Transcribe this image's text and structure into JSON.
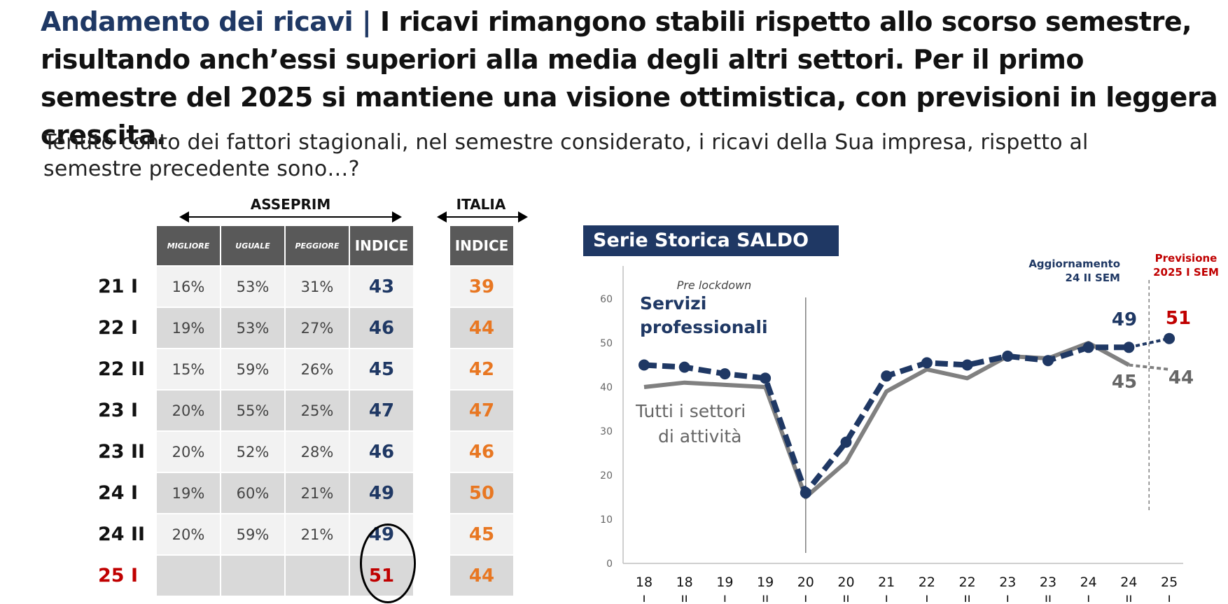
{
  "title": {
    "lead": "Andamento dei ricavi |",
    "rest": " I ricavi rimangono stabili rispetto allo scorso semestre, risultando anch’essi superiori alla media degli altri settori. Per il primo semestre del 2025 si mantiene una visione ottimistica, con previsioni in leggera crescita."
  },
  "question": "Tenuto conto dei fattori stagionali, nel semestre considerato, i ricavi della Sua impresa, rispetto al semestre precedente sono…?",
  "table": {
    "group_left": "ASSEPRIM",
    "group_right": "ITALIA",
    "headers": [
      "MIGLIORE",
      "UGUALE",
      "PEGGIORE",
      "INDICE"
    ],
    "header_italia": "INDICE",
    "rows": [
      {
        "label": "21 I",
        "migliore": "16%",
        "uguale": "53%",
        "peggiore": "31%",
        "indice": "43",
        "italia": "39"
      },
      {
        "label": "22 I",
        "migliore": "19%",
        "uguale": "53%",
        "peggiore": "27%",
        "indice": "46",
        "italia": "44"
      },
      {
        "label": "22 II",
        "migliore": "15%",
        "uguale": "59%",
        "peggiore": "26%",
        "indice": "45",
        "italia": "42"
      },
      {
        "label": "23 I",
        "migliore": "20%",
        "uguale": "55%",
        "peggiore": "25%",
        "indice": "47",
        "italia": "47"
      },
      {
        "label": "23 II",
        "migliore": "20%",
        "uguale": "52%",
        "peggiore": "28%",
        "indice": "46",
        "italia": "46"
      },
      {
        "label": "24 I",
        "migliore": "19%",
        "uguale": "60%",
        "peggiore": "21%",
        "indice": "49",
        "italia": "50"
      },
      {
        "label": "24 II",
        "migliore": "20%",
        "uguale": "59%",
        "peggiore": "21%",
        "indice": "49",
        "italia": "45"
      },
      {
        "label": "25 I",
        "migliore": "",
        "uguale": "",
        "peggiore": "",
        "indice": "51",
        "italia": "44"
      }
    ]
  },
  "chart_title": "Serie Storica SALDO",
  "colors": {
    "navy": "#1f3864",
    "grey": "#808080",
    "orange": "#e87722",
    "red": "#c00000",
    "header": "#595959"
  },
  "chart_data": {
    "type": "line",
    "x_top": [
      "18",
      "18",
      "19",
      "19",
      "20",
      "20",
      "21",
      "22",
      "22",
      "23",
      "23",
      "24",
      "24",
      "25"
    ],
    "x_bottom": [
      "I",
      "II",
      "I",
      "II",
      "I",
      "II",
      "I",
      "I",
      "II",
      "I",
      "II",
      "I",
      "II",
      "I"
    ],
    "ylim": [
      0,
      60
    ],
    "yticks": [
      "0",
      "10",
      "20",
      "30",
      "40",
      "50",
      "60"
    ],
    "series": [
      {
        "name": "Servizi professionali",
        "values": [
          45,
          44.5,
          43,
          42,
          16,
          27.5,
          42.5,
          45.5,
          45,
          47,
          46,
          49,
          49,
          51
        ],
        "forecast_from": 12
      },
      {
        "name": "Tutti i settori di attività",
        "values": [
          40,
          41,
          40.5,
          40,
          15,
          23,
          39,
          44,
          42,
          47,
          46.5,
          50,
          45,
          44
        ],
        "forecast_from": 12
      }
    ],
    "series_labels": {
      "servizi_line1": "Servizi",
      "servizi_line2": "professionali",
      "tutti_line1": "Tutti i settori",
      "tutti_line2": "di attività"
    },
    "annotations": {
      "pre_lockdown": "Pre lockdown",
      "aggiornamento_line1": "Aggiornamento",
      "aggiornamento_line2": "24 II SEM",
      "previsione_line1": "Previsione",
      "previsione_line2": "2025 I SEM",
      "val_49": "49",
      "val_51": "51",
      "val_45": "45",
      "val_44": "44"
    }
  }
}
